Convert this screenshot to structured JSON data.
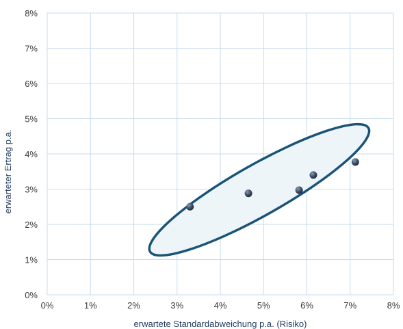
{
  "chart_data": {
    "type": "scatter",
    "title": "",
    "xlabel": "erwartete Standardabweichung p.a. (Risiko)",
    "ylabel": "erwarteter Ertrag p.a.",
    "xlim": [
      0,
      8
    ],
    "ylim": [
      0,
      8
    ],
    "x_ticks": [
      "0%",
      "1%",
      "2%",
      "3%",
      "4%",
      "5%",
      "6%",
      "7%",
      "8%"
    ],
    "y_ticks": [
      "0%",
      "1%",
      "2%",
      "3%",
      "4%",
      "5%",
      "6%",
      "7%",
      "8%"
    ],
    "grid": true,
    "points": [
      {
        "x": 3.3,
        "y": 2.5
      },
      {
        "x": 4.65,
        "y": 2.88
      },
      {
        "x": 5.82,
        "y": 2.97
      },
      {
        "x": 6.15,
        "y": 3.4
      },
      {
        "x": 7.12,
        "y": 3.77
      }
    ],
    "annotation_ellipse": {
      "cx": 4.9,
      "cy": 2.98,
      "rx": 2.9,
      "ry": 0.72,
      "angle_deg": -29.5
    },
    "colors": {
      "grid": "#c6dbef",
      "ellipse_stroke": "#1a5478",
      "ellipse_fill": "#eef5f9",
      "point": "#3e5068"
    }
  }
}
